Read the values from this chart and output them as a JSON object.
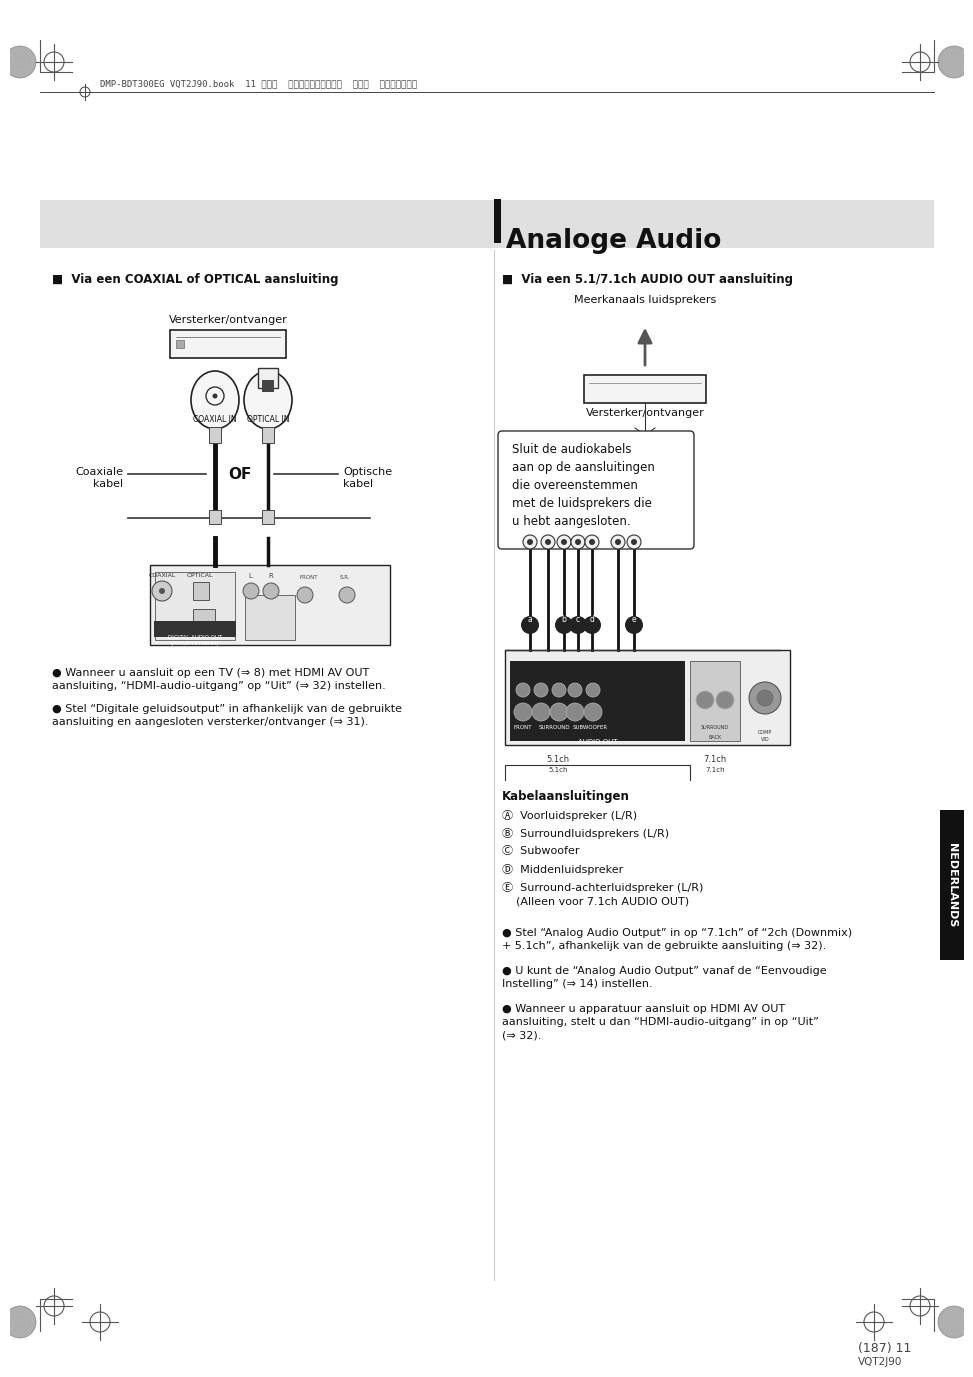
{
  "bg_color": "#ffffff",
  "header_bar_color": "#e0e0e0",
  "title": "Analoge Audio",
  "header_text": "DMP-BDT300EG VQT2J90.book  11 ページ  ２０１０年３月１２日  金曜日  午後６時５５分",
  "left_section_title": "■  Via een COAXIAL of OPTICAL aansluiting",
  "right_section_title": "■  Via een 5.1/7.1ch AUDIO OUT aansluiting",
  "left_label_amp": "Versterker/ontvanger",
  "left_label_coaxial_in": "COAXIAL IN",
  "left_label_optical_in": "OPTICAL IN",
  "left_label_of": "OF",
  "left_label_coaxial": "Coaxiale\nkabel",
  "left_label_optical": "Optische\nkabel",
  "left_label_digital": "DIGITAL AUDIO OUT\n(PCM/BITSTREAM)",
  "right_label_speakers": "Meerkanaals luidsprekers",
  "right_label_amp": "Versterker/ontvanger",
  "right_box_text": "Sluit de audiokabels\naan op de aansluitingen\ndie overeenstemmen\nmet de luidsprekers die\nu hebt aangesloten.",
  "kabel_title": "Kabelaansluitingen",
  "kabel_items": [
    "Ⓐ  Voorluidspreker (L/R)",
    "Ⓑ  Surroundluidsprekers (L/R)",
    "Ⓒ  Subwoofer",
    "Ⓓ  Middenluidspreker",
    "Ⓔ  Surround-achterluidspreker (L/R)\n    (Alleen voor 7.1ch AUDIO OUT)"
  ],
  "left_bullets": [
    "Wanneer u aansluit op een TV (⇒ 8) met HDMI AV OUT\naansluiting, “HDMI-audio-uitgang” op “Uit” (⇒ 32) instellen.",
    "Stel “Digitale geluidsoutput” in afhankelijk van de gebruikte\naansluiting en aangesloten versterker/ontvanger (⇒ 31)."
  ],
  "right_bullets": [
    "Stel “Analog Audio Output” in op “7.1ch” of “2ch (Downmix)\n+ 5.1ch”, afhankelijk van de gebruikte aansluiting (⇒ 32).",
    "U kunt de “Analog Audio Output” vanaf de “Eenvoudige\nInstelling” (⇒ 14) instellen.",
    "Wanneer u apparatuur aansluit op HDMI AV OUT\naansluiting, stelt u dan “HDMI-audio-uitgang” in op “Uit”\n(⇒ 32)."
  ],
  "page_num": "(187) 11",
  "page_code": "VQT2J90",
  "tab_text": "NEDERLANDS"
}
